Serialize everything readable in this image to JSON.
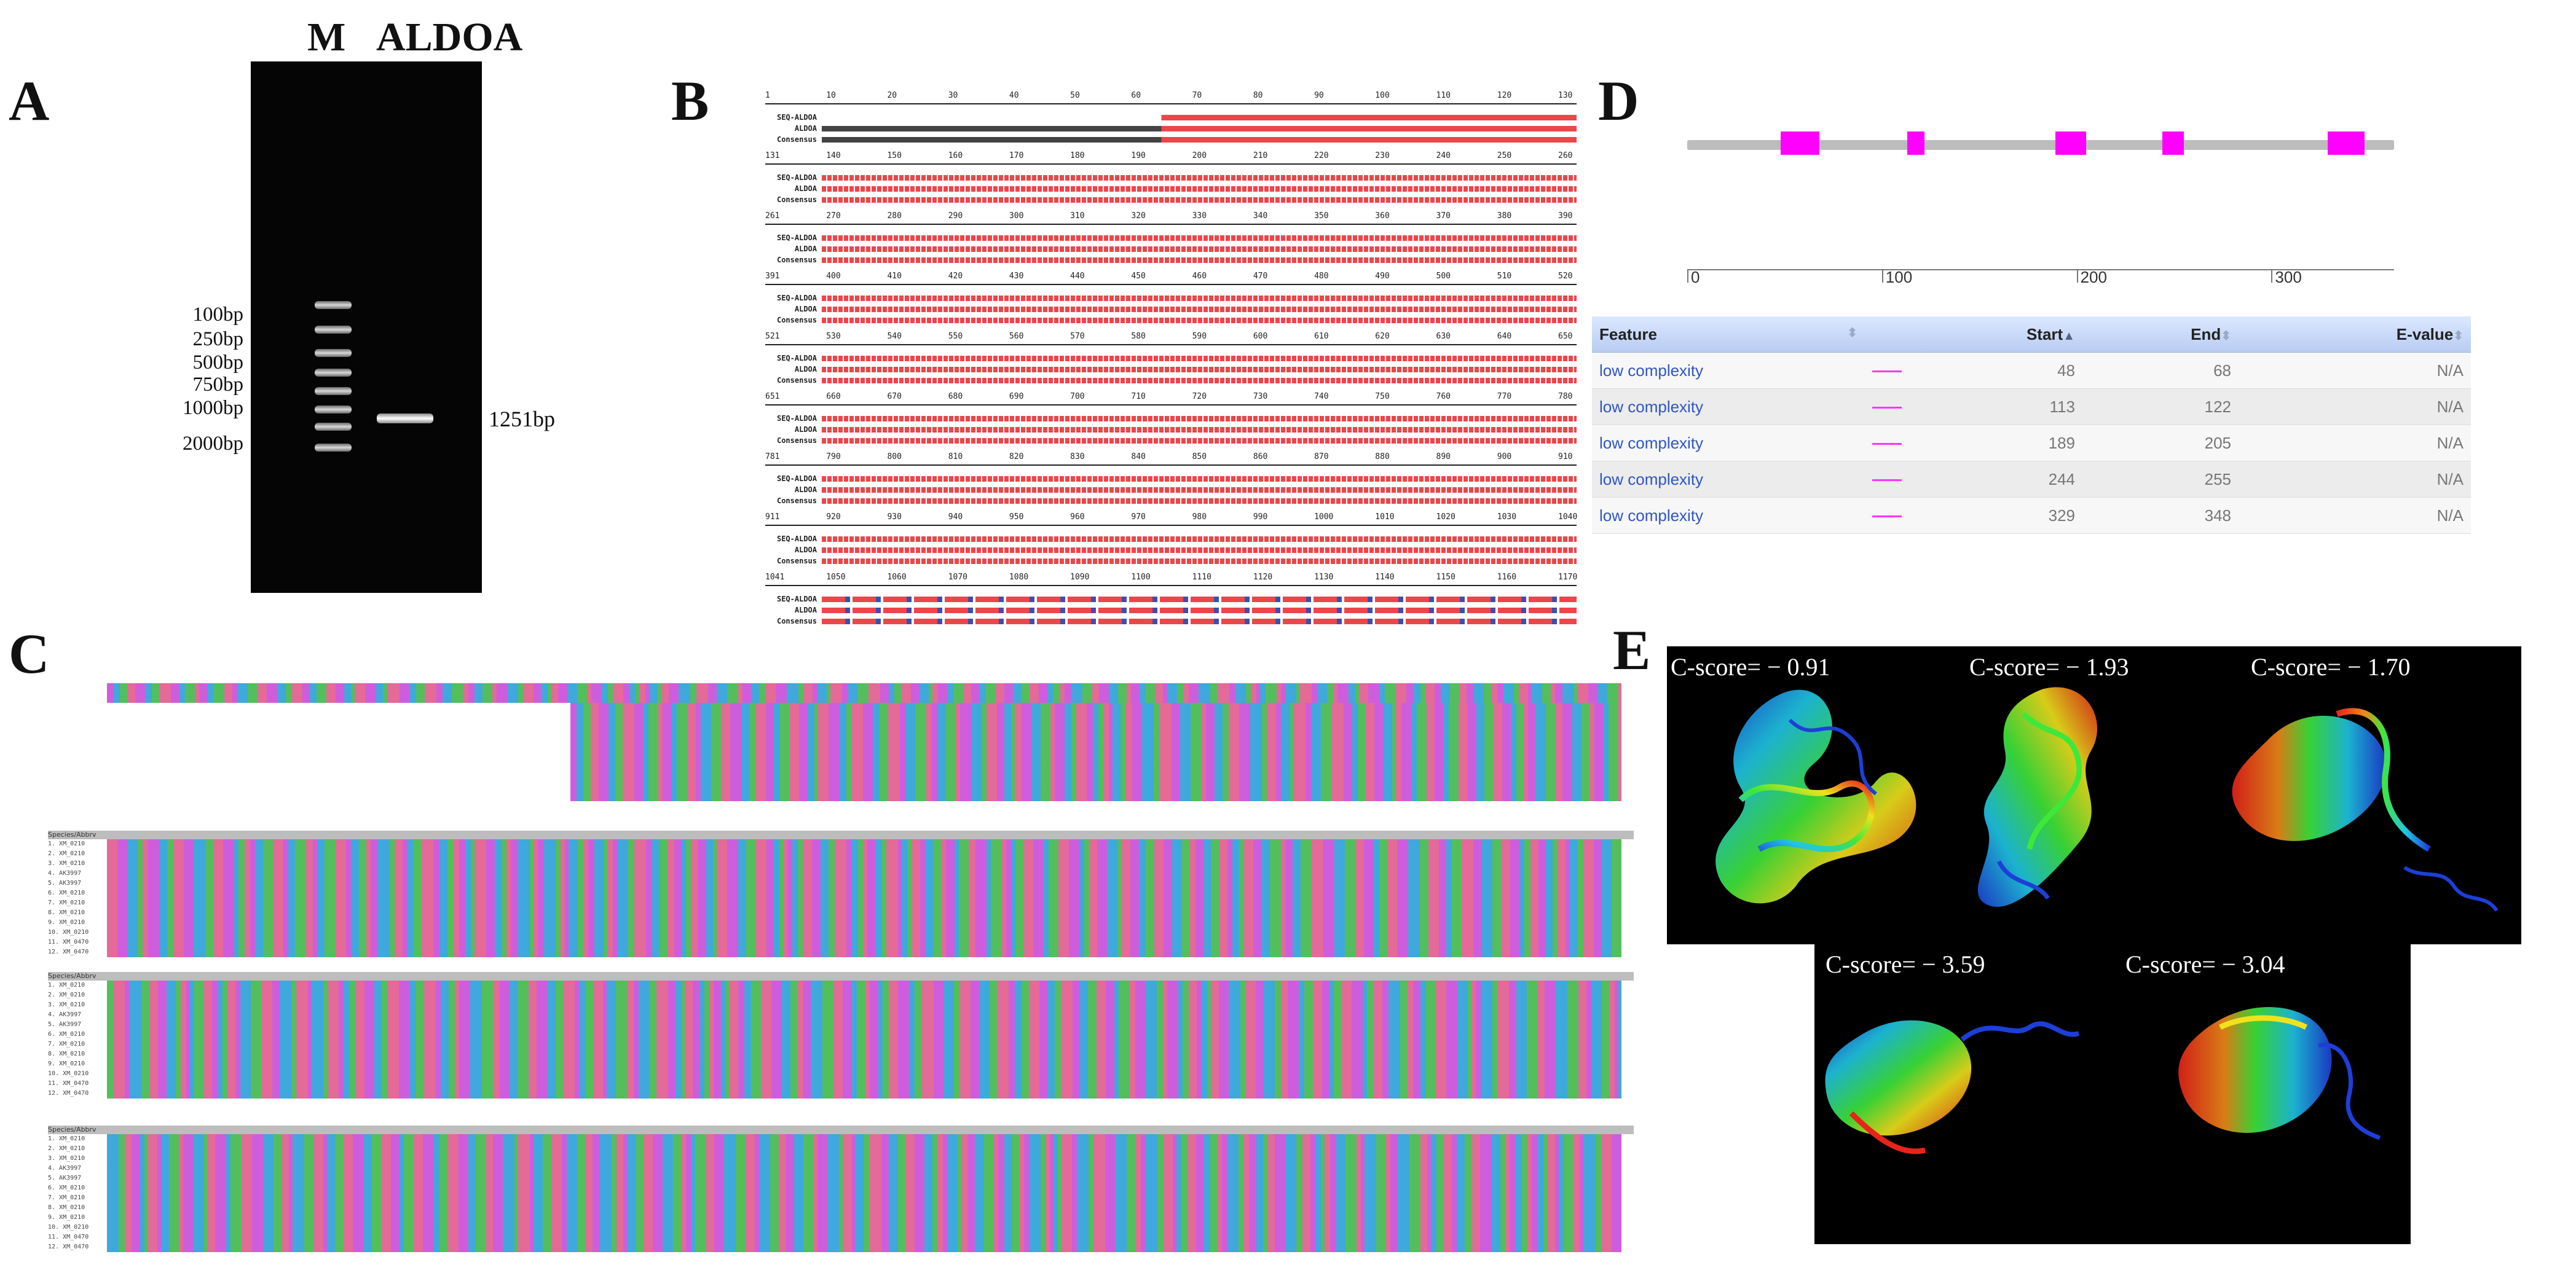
{
  "panels": {
    "A": "A",
    "B": "B",
    "C": "C",
    "D": "D",
    "E": "E"
  },
  "panelA": {
    "lane_m": "M",
    "lane_sample": "ALDOA",
    "ladder": [
      "100bp",
      "250bp",
      "500bp",
      "750bp",
      "1000bp",
      "2000bp"
    ],
    "band_label": "1251bp"
  },
  "panelB": {
    "row_names": [
      "SEQ-ALDOA",
      "ALDOA",
      "Consensus"
    ],
    "blocks": [
      {
        "ticks": [
          "1",
          "10",
          "20",
          "30",
          "40",
          "50",
          "60",
          "70",
          "80",
          "90",
          "100",
          "110",
          "120",
          "130"
        ]
      },
      {
        "ticks": [
          "131",
          "140",
          "150",
          "160",
          "170",
          "180",
          "190",
          "200",
          "210",
          "220",
          "230",
          "240",
          "250",
          "260"
        ]
      },
      {
        "ticks": [
          "261",
          "270",
          "280",
          "290",
          "300",
          "310",
          "320",
          "330",
          "340",
          "350",
          "360",
          "370",
          "380",
          "390"
        ]
      },
      {
        "ticks": [
          "391",
          "400",
          "410",
          "420",
          "430",
          "440",
          "450",
          "460",
          "470",
          "480",
          "490",
          "500",
          "510",
          "520"
        ]
      },
      {
        "ticks": [
          "521",
          "530",
          "540",
          "550",
          "560",
          "570",
          "580",
          "590",
          "600",
          "610",
          "620",
          "630",
          "640",
          "650"
        ]
      },
      {
        "ticks": [
          "651",
          "660",
          "670",
          "680",
          "690",
          "700",
          "710",
          "720",
          "730",
          "740",
          "750",
          "760",
          "770",
          "780"
        ]
      },
      {
        "ticks": [
          "781",
          "790",
          "800",
          "810",
          "820",
          "830",
          "840",
          "850",
          "860",
          "870",
          "880",
          "890",
          "900",
          "910"
        ]
      },
      {
        "ticks": [
          "911",
          "920",
          "930",
          "940",
          "950",
          "960",
          "970",
          "980",
          "990",
          "1000",
          "1010",
          "1020",
          "1030",
          "1040"
        ]
      },
      {
        "ticks": [
          "1041",
          "1050",
          "1060",
          "1070",
          "1080",
          "1090",
          "1100",
          "1110",
          "1120",
          "1130",
          "1140",
          "1150",
          "1160",
          "1170"
        ]
      }
    ],
    "colors": {
      "match": "#e8252a",
      "mismatch": "#1d2f9c",
      "neutral": "#222222"
    }
  },
  "panelC": {
    "species_header": "Species/Abbrv",
    "row_ids": [
      "1. XM_0210",
      "2. XM_0210",
      "3. XM_0210",
      "4. AK3997",
      "5. AK3997",
      "6. XM_0210",
      "7. XM_0210",
      "8. XM_0210",
      "9. XM_0210",
      "10. XM_0210",
      "11. XM_0470",
      "12. XM_0470"
    ],
    "nucleotide_colors": {
      "A": "#c94bd9",
      "C": "#2a9ed8",
      "G": "#3fb84a",
      "T": "#e15a8c"
    }
  },
  "panelD": {
    "axis_ticks": [
      "0",
      "100",
      "200",
      "300"
    ],
    "axis_values": [
      0,
      100,
      200,
      300
    ],
    "protein_length": 363,
    "table": {
      "headers": [
        "Feature",
        "Start",
        "End",
        "E-value"
      ],
      "rows": [
        {
          "feature": "low complexity",
          "start": 48,
          "end": 68,
          "evalue": "N/A"
        },
        {
          "feature": "low complexity",
          "start": 113,
          "end": 122,
          "evalue": "N/A"
        },
        {
          "feature": "low complexity",
          "start": 189,
          "end": 205,
          "evalue": "N/A"
        },
        {
          "feature": "low complexity",
          "start": 244,
          "end": 255,
          "evalue": "N/A"
        },
        {
          "feature": "low complexity",
          "start": 329,
          "end": 348,
          "evalue": "N/A"
        }
      ]
    },
    "domain_color": "#ff00ff"
  },
  "panelE": {
    "models": [
      {
        "label": "C-score= − 0.91"
      },
      {
        "label": "C-score= − 1.93"
      },
      {
        "label": "C-score= − 1.70"
      },
      {
        "label": "C-score= − 3.59"
      },
      {
        "label": "C-score= − 3.04"
      }
    ]
  }
}
